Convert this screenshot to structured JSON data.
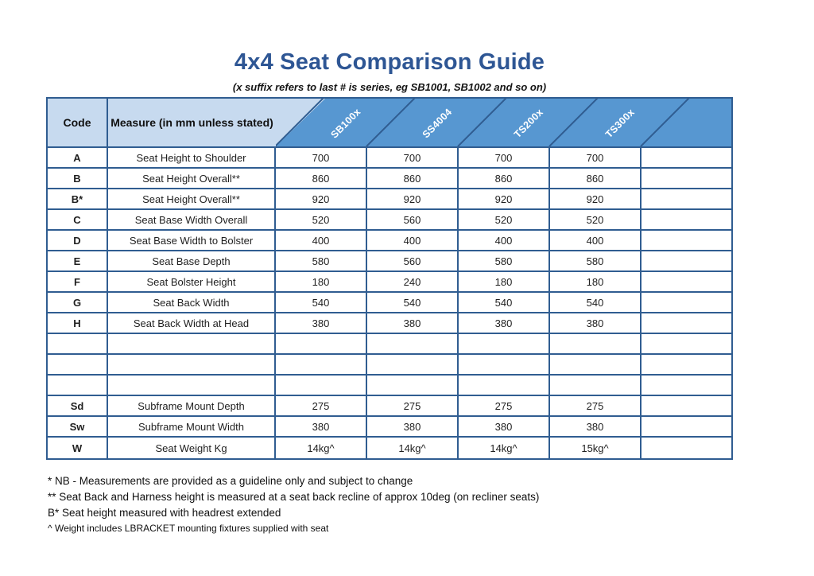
{
  "title": "4x4 Seat Comparison Guide",
  "subtitle": "(x suffix refers to last # is series, eg SB1001, SB1002 and so on)",
  "colors": {
    "title_blue": "#2e5694",
    "header_light_blue": "#c7daef",
    "header_dark_blue": "#5797d1",
    "grid_navy": "#305d91"
  },
  "table": {
    "code_header": "Code",
    "measure_header": "Measure (in mm unless stated)",
    "columns": [
      "SB100x",
      "SS4004",
      "TS200x",
      "TS300x",
      ""
    ],
    "rows": [
      {
        "code": "A",
        "measure": "Seat Height to Shoulder",
        "values": [
          "700",
          "700",
          "700",
          "700",
          ""
        ]
      },
      {
        "code": "B",
        "measure": "Seat Height Overall**",
        "values": [
          "860",
          "860",
          "860",
          "860",
          ""
        ]
      },
      {
        "code": "B*",
        "measure": "Seat Height Overall**",
        "values": [
          "920",
          "920",
          "920",
          "920",
          ""
        ]
      },
      {
        "code": "C",
        "measure": "Seat Base Width Overall",
        "values": [
          "520",
          "560",
          "520",
          "520",
          ""
        ]
      },
      {
        "code": "D",
        "measure": "Seat Base Width to Bolster",
        "values": [
          "400",
          "400",
          "400",
          "400",
          ""
        ]
      },
      {
        "code": "E",
        "measure": "Seat Base Depth",
        "values": [
          "580",
          "560",
          "580",
          "580",
          ""
        ]
      },
      {
        "code": "F",
        "measure": "Seat Bolster Height",
        "values": [
          "180",
          "240",
          "180",
          "180",
          ""
        ]
      },
      {
        "code": "G",
        "measure": "Seat Back Width",
        "values": [
          "540",
          "540",
          "540",
          "540",
          ""
        ]
      },
      {
        "code": "H",
        "measure": "Seat Back Width at Head",
        "values": [
          "380",
          "380",
          "380",
          "380",
          ""
        ]
      },
      {
        "code": "",
        "measure": "",
        "values": [
          "",
          "",
          "",
          "",
          ""
        ]
      },
      {
        "code": "",
        "measure": "",
        "values": [
          "",
          "",
          "",
          "",
          ""
        ]
      },
      {
        "code": "",
        "measure": "",
        "values": [
          "",
          "",
          "",
          "",
          ""
        ]
      },
      {
        "code": "Sd",
        "measure": "Subframe Mount Depth",
        "values": [
          "275",
          "275",
          "275",
          "275",
          ""
        ]
      },
      {
        "code": "Sw",
        "measure": "Subframe Mount Width",
        "values": [
          "380",
          "380",
          "380",
          "380",
          ""
        ]
      },
      {
        "code": "W",
        "measure": "Seat Weight Kg",
        "values": [
          "14kg^",
          "14kg^",
          "14kg^",
          "15kg^",
          ""
        ]
      }
    ]
  },
  "footnotes": [
    "* NB - Measurements are provided as a guideline only and subject to change",
    "** Seat Back and Harness height is measured at a seat back recline of approx 10deg (on recliner seats)",
    "B* Seat height measured with headrest extended",
    "^ Weight includes LBRACKET mounting fixtures supplied with seat"
  ]
}
